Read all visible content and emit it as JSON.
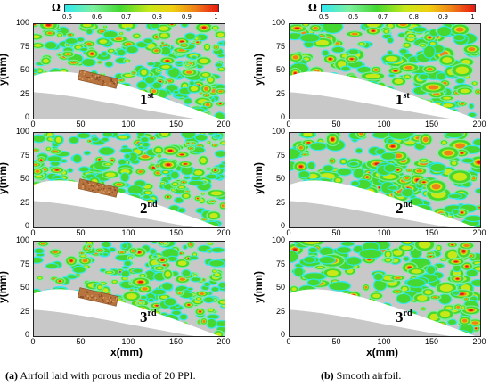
{
  "colorbar": {
    "label": "Ω",
    "ticks": [
      "0.5",
      "0.6",
      "0.7",
      "0.8",
      "0.9",
      "1"
    ],
    "colors": [
      "#2ee8f0",
      "#7cf0a0",
      "#44d830",
      "#c8e818",
      "#f0d010",
      "#f08018",
      "#e81810"
    ]
  },
  "axes": {
    "ylabel": "y(mm)",
    "xlabel": "x(mm)",
    "yticks": [
      "0",
      "25",
      "50",
      "75",
      "100"
    ],
    "xticks": [
      "0",
      "50",
      "100",
      "150",
      "200"
    ]
  },
  "panels": [
    {
      "column": "a",
      "row": 1,
      "ordinal_num": "1",
      "ordinal_sup": "st",
      "porous_strip": true
    },
    {
      "column": "a",
      "row": 2,
      "ordinal_num": "2",
      "ordinal_sup": "nd",
      "porous_strip": true
    },
    {
      "column": "a",
      "row": 3,
      "ordinal_num": "3",
      "ordinal_sup": "rd",
      "porous_strip": true
    },
    {
      "column": "b",
      "row": 1,
      "ordinal_num": "1",
      "ordinal_sup": "st",
      "porous_strip": false
    },
    {
      "column": "b",
      "row": 2,
      "ordinal_num": "2",
      "ordinal_sup": "nd",
      "porous_strip": false
    },
    {
      "column": "b",
      "row": 3,
      "ordinal_num": "3",
      "ordinal_sup": "rd",
      "porous_strip": false
    }
  ],
  "captions": {
    "a_tag": "(a)",
    "a_text": " Airfoil laid with porous media of 20 PPI.",
    "b_tag": "(b)",
    "b_text": " Smooth airfoil."
  }
}
